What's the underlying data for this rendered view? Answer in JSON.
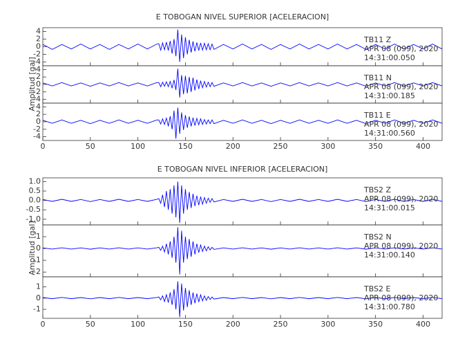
{
  "chart_data": [
    {
      "type": "line",
      "title": "E TOBOGAN NIVEL SUPERIOR [ACELERACION]",
      "y_label": "Amplitud [gal]",
      "x": [
        0,
        10,
        20,
        30,
        40,
        50,
        60,
        70,
        80,
        90,
        100,
        110,
        120,
        122,
        124,
        126,
        128,
        130,
        132,
        134,
        136,
        138,
        140,
        142,
        144,
        146,
        148,
        150,
        152,
        154,
        156,
        158,
        160,
        162,
        164,
        166,
        168,
        170,
        172,
        174,
        176,
        178,
        180,
        190,
        200,
        210,
        220,
        230,
        240,
        250,
        260,
        270,
        280,
        290,
        300,
        310,
        320,
        330,
        340,
        350,
        360,
        370,
        380,
        390,
        400,
        410,
        420
      ],
      "xlim": [
        0,
        420
      ],
      "xticks": [
        0,
        50,
        100,
        150,
        200,
        250,
        300,
        350,
        400
      ],
      "panels": [
        {
          "annotation": [
            "TB11 Z",
            "APR 08 (099), 2020",
            "14:31:00.050"
          ],
          "color": "#0000ff",
          "ylim": [
            -5,
            5
          ],
          "yticks": [
            4,
            2,
            0,
            -2,
            -4
          ],
          "values": [
            0.6,
            -0.7,
            0.6,
            -0.6,
            0.7,
            -0.6,
            0.6,
            -0.7,
            0.6,
            -0.6,
            0.7,
            -0.6,
            0.7,
            0.8,
            -0.9,
            1.0,
            -0.8,
            1.2,
            -1.0,
            1.5,
            -1.8,
            2.0,
            -2.5,
            4.5,
            -4.0,
            3.2,
            -3.0,
            2.5,
            -2.0,
            1.8,
            -1.5,
            1.4,
            -1.2,
            1.1,
            -1.0,
            1.0,
            -0.9,
            0.9,
            -0.8,
            0.8,
            -0.8,
            0.7,
            -0.7,
            0.6,
            -0.6,
            0.7,
            -0.6,
            0.6,
            -0.7,
            0.6,
            -0.6,
            0.7,
            -0.6,
            0.6,
            -0.6,
            0.7,
            -0.6,
            0.6,
            -0.7,
            0.6,
            -0.6,
            0.7,
            -0.6,
            0.6,
            -0.6,
            0.7,
            -0.6
          ]
        },
        {
          "annotation": [
            "TB11 N",
            "APR 08 (099), 2020",
            "14:31:00.185"
          ],
          "color": "#0000ff",
          "ylim": [
            -5,
            5
          ],
          "yticks": [
            4,
            2,
            0,
            -2,
            -4
          ],
          "values": [
            0.4,
            -0.4,
            0.5,
            -0.4,
            0.4,
            -0.5,
            0.4,
            -0.4,
            0.5,
            -0.4,
            0.4,
            -0.4,
            0.5,
            0.5,
            -0.6,
            0.6,
            -0.5,
            0.7,
            -0.6,
            0.8,
            -1.0,
            1.2,
            -1.5,
            4.2,
            -3.5,
            2.5,
            -2.6,
            2.3,
            -2.4,
            2.0,
            -2.0,
            1.8,
            -1.6,
            1.3,
            -1.2,
            1.0,
            -0.9,
            0.8,
            -0.7,
            0.6,
            -0.6,
            0.5,
            -0.5,
            0.4,
            -0.4,
            0.5,
            -0.4,
            0.4,
            -0.5,
            0.4,
            -0.4,
            0.5,
            -0.4,
            0.4,
            -0.4,
            0.5,
            -0.4,
            0.4,
            -0.5,
            0.4,
            -0.4,
            0.5,
            -0.4,
            0.4,
            -0.4,
            0.5,
            -0.4
          ]
        },
        {
          "annotation": [
            "TB11 E",
            "APR 08 (099), 2020",
            "14:31:00.560"
          ],
          "color": "#0000ff",
          "ylim": [
            -5,
            5
          ],
          "yticks": [
            4,
            2,
            0,
            -2,
            -4
          ],
          "values": [
            0.4,
            -0.4,
            0.5,
            -0.4,
            0.4,
            -0.5,
            0.4,
            -0.4,
            0.5,
            -0.4,
            0.4,
            -0.4,
            0.5,
            0.5,
            -0.6,
            0.8,
            -0.7,
            1.0,
            -1.2,
            1.5,
            -2.0,
            3.0,
            -4.5,
            3.8,
            -3.2,
            2.5,
            -2.2,
            1.8,
            -1.6,
            1.4,
            -1.2,
            1.1,
            -1.0,
            0.9,
            -0.8,
            0.8,
            -0.7,
            0.6,
            -0.6,
            0.5,
            -0.5,
            0.5,
            -0.5,
            0.4,
            -0.4,
            0.5,
            -0.4,
            0.4,
            -0.5,
            0.4,
            -0.4,
            0.5,
            -0.4,
            0.4,
            -0.4,
            0.5,
            -0.4,
            0.4,
            -0.5,
            0.4,
            -0.4,
            0.5,
            -0.4,
            0.4,
            -0.4,
            0.5,
            -0.4
          ]
        }
      ]
    },
    {
      "type": "line",
      "title": "E TOBOGAN NIVEL INFERIOR [ACELERACION]",
      "y_label": "Amplitud [gal]",
      "x": [
        0,
        10,
        20,
        30,
        40,
        50,
        60,
        70,
        80,
        90,
        100,
        110,
        120,
        122,
        124,
        126,
        128,
        130,
        132,
        134,
        136,
        138,
        140,
        142,
        144,
        146,
        148,
        150,
        152,
        154,
        156,
        158,
        160,
        162,
        164,
        166,
        168,
        170,
        172,
        174,
        176,
        178,
        180,
        190,
        200,
        210,
        220,
        230,
        240,
        250,
        260,
        270,
        280,
        290,
        300,
        310,
        320,
        330,
        340,
        350,
        360,
        370,
        380,
        390,
        400,
        410,
        420
      ],
      "xlim": [
        0,
        420
      ],
      "xticks": [
        0,
        50,
        100,
        150,
        200,
        250,
        300,
        350,
        400
      ],
      "panels": [
        {
          "annotation": [
            "TBS2 Z",
            "APR 08 (099), 2020",
            "14:31:00.015"
          ],
          "color": "#0000ff",
          "ylim": [
            -1.3,
            1.2
          ],
          "yticks": [
            {
              "value": 1,
              "label": "1.0"
            },
            0.5,
            {
              "value": 0,
              "label": "0.0"
            },
            -0.5,
            {
              "value": -1,
              "label": "-1.0"
            }
          ],
          "values": [
            0.05,
            -0.05,
            0.06,
            -0.05,
            0.05,
            -0.06,
            0.05,
            -0.05,
            0.06,
            -0.05,
            0.05,
            -0.05,
            0.06,
            0.1,
            -0.15,
            0.3,
            -0.35,
            0.5,
            -0.5,
            0.6,
            -0.7,
            0.8,
            -0.9,
            1.0,
            -1.2,
            0.8,
            -0.7,
            0.6,
            -0.5,
            0.45,
            -0.4,
            0.35,
            -0.3,
            0.25,
            -0.25,
            0.2,
            -0.2,
            0.15,
            -0.15,
            0.12,
            -0.1,
            0.1,
            -0.08,
            0.05,
            -0.05,
            0.06,
            -0.05,
            0.05,
            -0.06,
            0.05,
            -0.05,
            0.06,
            -0.05,
            0.05,
            -0.05,
            0.06,
            -0.05,
            0.05,
            -0.06,
            0.05,
            -0.05,
            0.06,
            -0.05,
            0.05,
            -0.05,
            0.06,
            -0.05
          ]
        },
        {
          "annotation": [
            "TBS2 N",
            "APR 08 (099), 2020",
            "14:31:00.140"
          ],
          "color": "#0000ff",
          "ylim": [
            -2.4,
            2.0
          ],
          "yticks": [
            1,
            0,
            -1,
            -2
          ],
          "values": [
            0.05,
            -0.05,
            0.06,
            -0.05,
            0.05,
            -0.06,
            0.05,
            -0.05,
            0.06,
            -0.05,
            0.05,
            -0.05,
            0.06,
            0.1,
            -0.15,
            0.2,
            -0.3,
            0.4,
            -0.5,
            0.6,
            -0.8,
            1.0,
            -1.2,
            1.8,
            -2.2,
            1.5,
            -1.2,
            1.0,
            -0.9,
            0.8,
            -0.7,
            0.6,
            -0.5,
            0.4,
            -0.35,
            0.3,
            -0.25,
            0.2,
            -0.2,
            0.15,
            -0.12,
            0.1,
            -0.08,
            0.05,
            -0.05,
            0.06,
            -0.05,
            0.05,
            -0.06,
            0.05,
            -0.05,
            0.06,
            -0.05,
            0.05,
            -0.05,
            0.06,
            -0.05,
            0.05,
            -0.06,
            0.05,
            -0.05,
            0.06,
            -0.05,
            0.05,
            -0.05,
            0.06,
            -0.05
          ]
        },
        {
          "annotation": [
            "TBS2 E",
            "APR 08 (099), 2020",
            "14:31:00.780"
          ],
          "color": "#0000ff",
          "ylim": [
            -1.8,
            1.9
          ],
          "yticks": [
            1,
            0,
            -1
          ],
          "values": [
            0.05,
            -0.05,
            0.06,
            -0.05,
            0.05,
            -0.06,
            0.05,
            -0.05,
            0.06,
            -0.05,
            0.05,
            -0.05,
            0.06,
            0.1,
            -0.15,
            0.2,
            -0.3,
            0.3,
            -0.4,
            0.5,
            -0.6,
            0.8,
            -1.0,
            1.5,
            -1.7,
            1.3,
            -1.1,
            0.9,
            -0.8,
            0.7,
            -0.6,
            0.5,
            -0.45,
            0.4,
            -0.35,
            0.3,
            -0.25,
            0.2,
            -0.2,
            0.15,
            -0.12,
            0.1,
            -0.08,
            0.05,
            -0.05,
            0.06,
            -0.05,
            0.05,
            -0.06,
            0.05,
            -0.05,
            0.06,
            -0.05,
            0.05,
            -0.05,
            0.06,
            -0.05,
            0.05,
            -0.06,
            0.05,
            -0.05,
            0.06,
            -0.05,
            0.05,
            -0.05,
            0.06,
            -0.05
          ]
        }
      ]
    }
  ]
}
